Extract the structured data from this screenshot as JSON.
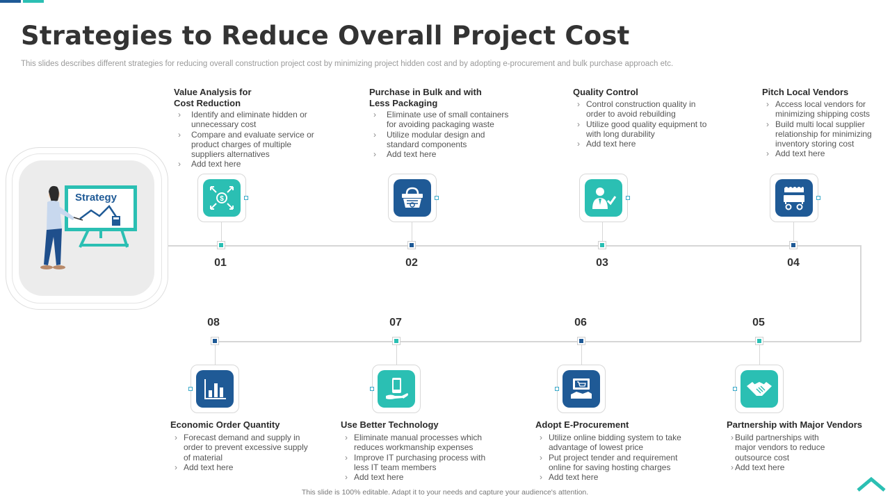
{
  "header": {
    "title": "Strategies to Reduce Overall Project Cost",
    "subtitle": "This slides describes different strategies for reducing overall construction project cost by minimizing project hidden cost and by adopting e-procurement and bulk purchase approach etc."
  },
  "hero": {
    "label": "Strategy",
    "icon": "presenter-whiteboard-illustration"
  },
  "steps": [
    {
      "number": "01",
      "title": "Value Analysis for\nCost Reduction",
      "icon": "money-arrows-icon",
      "color": "teal",
      "bullets": [
        "Identify and eliminate hidden or unnecessary cost",
        "Compare and evaluate service or product charges of multiple suppliers alternatives",
        "Add text here"
      ]
    },
    {
      "number": "02",
      "title": "Purchase in Bulk and with\nLess Packaging",
      "icon": "shopping-basket-icon",
      "color": "navy",
      "bullets": [
        "Eliminate use of small containers for avoiding packaging waste",
        "Utilize modular design and standard components",
        "Add text here"
      ]
    },
    {
      "number": "03",
      "title": "Quality Control",
      "icon": "quality-inspector-icon",
      "color": "teal",
      "bullets": [
        "Control construction quality in order to avoid rebuilding",
        "Utilize good quality equipment to with long durability",
        "Add text here"
      ]
    },
    {
      "number": "04",
      "title": "Pitch Local Vendors",
      "icon": "vendor-cart-icon",
      "color": "navy",
      "bullets": [
        "Access local vendors for minimizing shipping costs",
        "Build multi local supplier relationship for minimizing inventory storing cost",
        "Add text here"
      ]
    },
    {
      "number": "05",
      "title": "Partnership with Major Vendors",
      "icon": "handshake-icon",
      "color": "teal",
      "bullets": [
        "Build partnerships with major vendors to reduce outsource cost",
        "Add text here"
      ]
    },
    {
      "number": "06",
      "title": "Adopt E-Procurement",
      "icon": "online-shopping-icon",
      "color": "navy",
      "bullets": [
        "Utilize online bidding system to take advantage of lowest price",
        "Put project tender and requirement online for saving hosting charges",
        "Add text here"
      ]
    },
    {
      "number": "07",
      "title": "Use Better Technology",
      "icon": "mobile-hand-icon",
      "color": "teal",
      "bullets": [
        "Eliminate manual processes which reduces workmanship expenses",
        "Improve IT purchasing process with less IT team members",
        "Add text here"
      ]
    },
    {
      "number": "08",
      "title": "Economic Order Quantity",
      "icon": "bar-chart-icon",
      "color": "navy",
      "bullets": [
        "Forecast demand and supply in order to prevent excessive supply of material",
        "Add text here"
      ]
    }
  ],
  "footer": {
    "note": "This slide is 100% editable. Adapt it to your needs and capture your audience's attention."
  },
  "colors": {
    "teal": "#2bbfb3",
    "navy": "#1f5a96",
    "line": "#d6d6d6"
  }
}
